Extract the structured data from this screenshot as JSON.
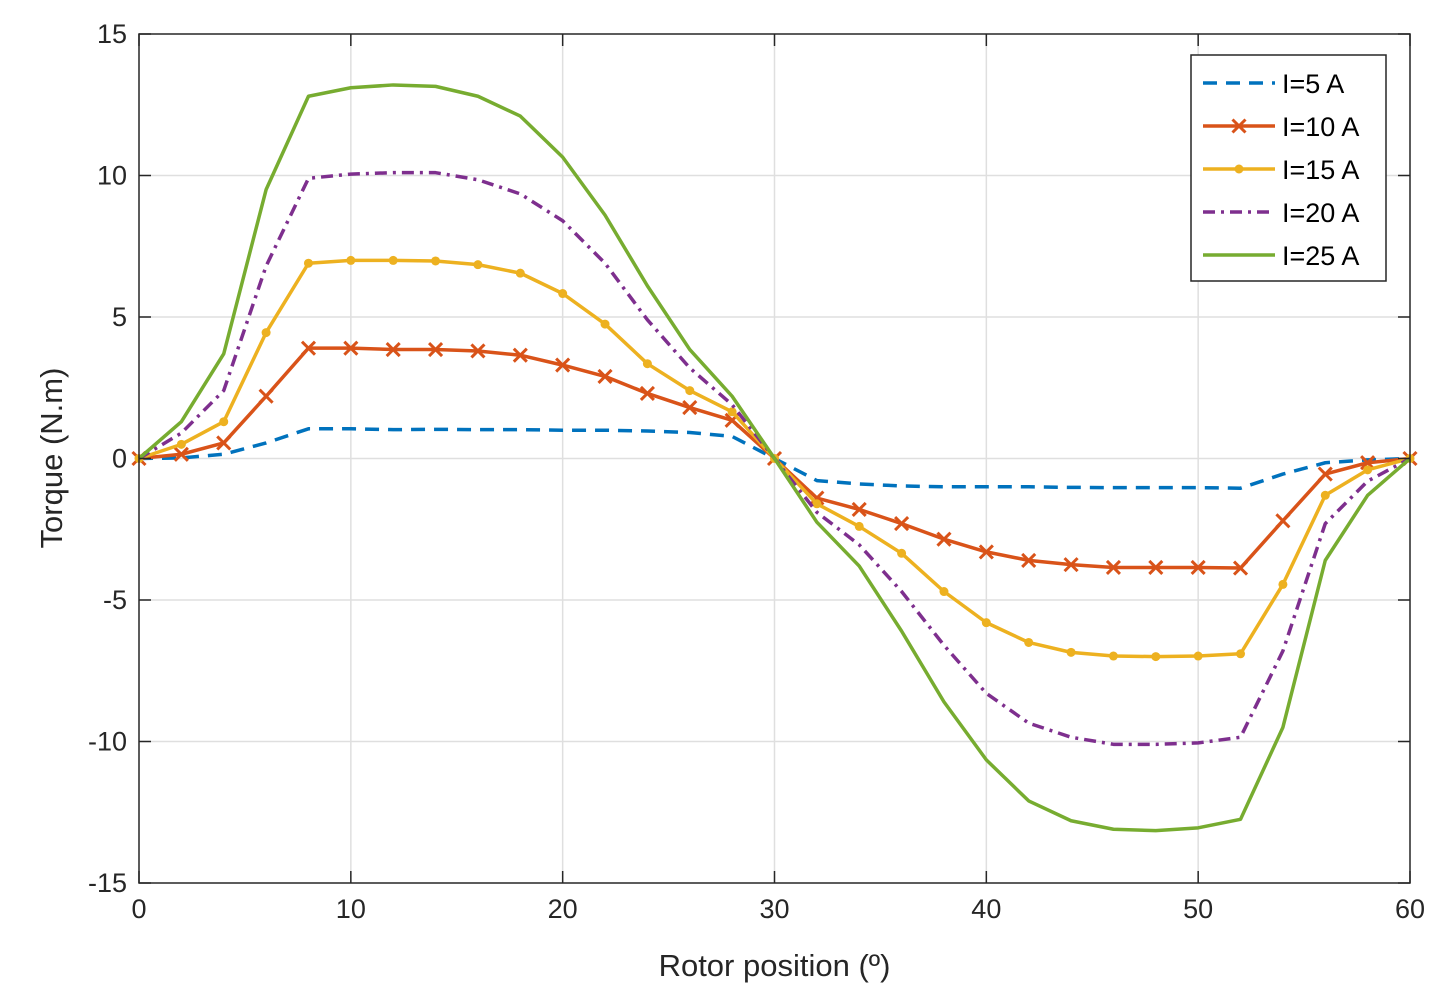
{
  "chart_data": {
    "type": "line",
    "title": "",
    "xlabel": "Rotor position (º)",
    "ylabel": "Torque (N.m)",
    "xlim": [
      0,
      60
    ],
    "ylim": [
      -15,
      15
    ],
    "grid": true,
    "legend_position": "top-right",
    "x_ticks": [
      0,
      10,
      20,
      30,
      40,
      50,
      60
    ],
    "x_tick_labels": [
      "0",
      "10",
      "20",
      "30",
      "40",
      "50",
      "60"
    ],
    "y_ticks": [
      15,
      10,
      5,
      0,
      -5,
      -10,
      -15
    ],
    "y_tick_labels": [
      "15",
      "10",
      "5",
      "0",
      "-5",
      "-10",
      "-15"
    ],
    "x": [
      0,
      2,
      4,
      6,
      8,
      10,
      12,
      14,
      16,
      18,
      20,
      22,
      24,
      26,
      28,
      30,
      32,
      34,
      36,
      38,
      40,
      42,
      44,
      46,
      48,
      50,
      52,
      54,
      56,
      58,
      60
    ],
    "series": [
      {
        "name": "I=5 A",
        "color": "#0072BD",
        "line_style": "dashed",
        "marker": "none",
        "values": [
          0,
          0.02,
          0.15,
          0.55,
          1.05,
          1.05,
          1.02,
          1.03,
          1.02,
          1.02,
          1.0,
          1.0,
          0.97,
          0.92,
          0.78,
          0,
          -0.78,
          -0.9,
          -0.97,
          -1.0,
          -1.0,
          -1.0,
          -1.02,
          -1.03,
          -1.03,
          -1.03,
          -1.05,
          -0.55,
          -0.15,
          -0.05,
          0
        ]
      },
      {
        "name": "I=10 A",
        "color": "#D95319",
        "line_style": "solid",
        "marker": "x",
        "values": [
          0,
          0.15,
          0.55,
          2.2,
          3.9,
          3.9,
          3.85,
          3.85,
          3.8,
          3.65,
          3.3,
          2.9,
          2.3,
          1.8,
          1.35,
          0,
          -1.4,
          -1.8,
          -2.3,
          -2.85,
          -3.3,
          -3.6,
          -3.75,
          -3.85,
          -3.85,
          -3.85,
          -3.87,
          -2.2,
          -0.55,
          -0.15,
          0
        ]
      },
      {
        "name": "I=15 A",
        "color": "#EDB120",
        "line_style": "solid",
        "marker": "dot",
        "values": [
          0,
          0.5,
          1.3,
          4.45,
          6.9,
          7.0,
          7.0,
          6.98,
          6.85,
          6.55,
          5.83,
          4.75,
          3.35,
          2.4,
          1.65,
          0,
          -1.6,
          -2.4,
          -3.35,
          -4.7,
          -5.8,
          -6.5,
          -6.85,
          -6.98,
          -7.0,
          -6.98,
          -6.9,
          -4.45,
          -1.3,
          -0.4,
          0
        ]
      },
      {
        "name": "I=20 A",
        "color": "#7E2F8E",
        "line_style": "dashdot",
        "marker": "none",
        "values": [
          0,
          0.9,
          2.4,
          6.8,
          9.9,
          10.05,
          10.1,
          10.1,
          9.85,
          9.35,
          8.4,
          6.9,
          4.9,
          3.2,
          1.9,
          0,
          -1.9,
          -3.05,
          -4.7,
          -6.6,
          -8.3,
          -9.35,
          -9.85,
          -10.1,
          -10.1,
          -10.05,
          -9.85,
          -6.8,
          -2.3,
          -0.8,
          0
        ]
      },
      {
        "name": "I=25 A",
        "color": "#77AC30",
        "line_style": "solid",
        "marker": "none",
        "values": [
          0,
          1.3,
          3.7,
          9.5,
          12.8,
          13.1,
          13.2,
          13.15,
          12.8,
          12.1,
          10.65,
          8.6,
          6.1,
          3.85,
          2.2,
          0,
          -2.25,
          -3.8,
          -6.1,
          -8.6,
          -10.65,
          -12.1,
          -12.8,
          -13.1,
          -13.15,
          -13.05,
          -12.75,
          -9.5,
          -3.6,
          -1.3,
          0
        ]
      }
    ]
  }
}
